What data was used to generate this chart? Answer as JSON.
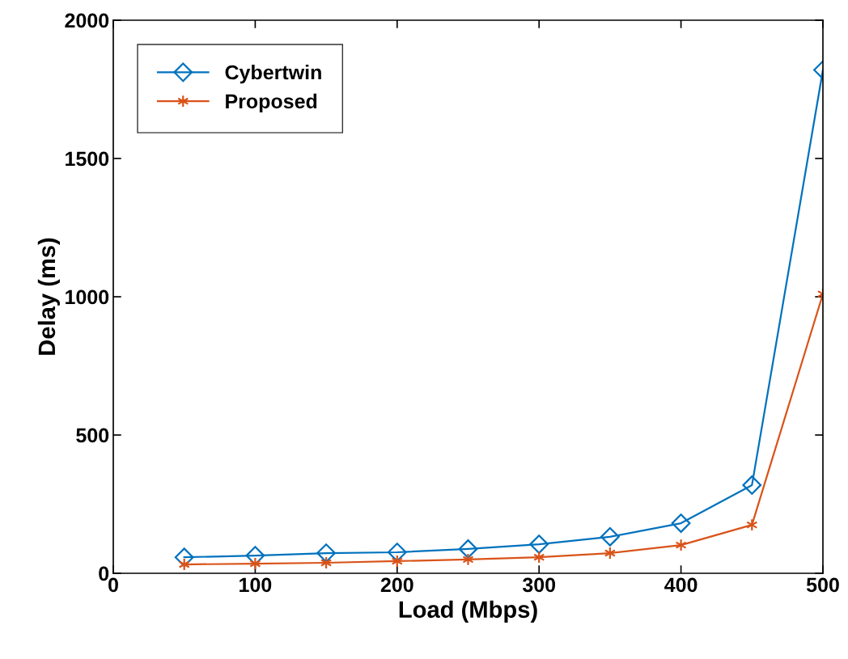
{
  "chart_data": {
    "type": "line",
    "xlabel": "Load (Mbps)",
    "ylabel": "Delay (ms)",
    "x": [
      50,
      100,
      150,
      200,
      250,
      300,
      350,
      400,
      450,
      500
    ],
    "series": [
      {
        "name": "Cybertwin",
        "color": "#0072bd",
        "marker": "diamond",
        "values": [
          58,
          64,
          73,
          76,
          88,
          105,
          132,
          181,
          319,
          1820
        ]
      },
      {
        "name": "Proposed",
        "color": "#d95319",
        "marker": "cross",
        "values": [
          32,
          35,
          38,
          44,
          50,
          58,
          73,
          102,
          175,
          1010
        ]
      }
    ],
    "xlim": [
      0,
      500
    ],
    "xticks": [
      0,
      100,
      200,
      300,
      400,
      500
    ],
    "ylim": [
      0,
      2000
    ],
    "yticks": [
      0,
      500,
      1000,
      1500,
      2000
    ],
    "grid": false,
    "legend": "top left",
    "line_style": "solid"
  }
}
